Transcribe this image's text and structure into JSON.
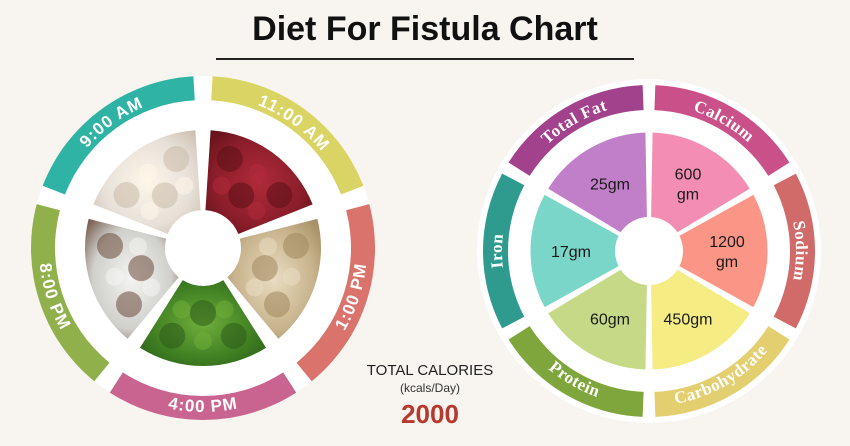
{
  "title": "Diet For Fistula Chart",
  "total_calories": {
    "label": "TOTAL CALORIES",
    "unit": "(kcals/Day)",
    "value": "2000"
  },
  "meal_wheel": {
    "segments": [
      {
        "label": "9:00 AM",
        "color": "#2fb3a5",
        "food": "idli-and-sambar-image"
      },
      {
        "label": "11:00 AM",
        "color": "#d9d463",
        "food": "pomegranate-image"
      },
      {
        "label": "1:00 PM",
        "color": "#d9736b",
        "food": "brown-rice-image"
      },
      {
        "label": "4:00 PM",
        "color": "#c9638f",
        "food": "broccoli-image"
      },
      {
        "label": "8:00 PM",
        "color": "#8fb04a",
        "food": "rice-bowl-image"
      }
    ]
  },
  "chart_data": {
    "type": "pie",
    "title": "",
    "categories": [
      "Total Fat",
      "Calcium",
      "Sodium",
      "Carbohydrate",
      "Protein",
      "Iron"
    ],
    "values": [
      "25gm",
      "600 gm",
      "1200 gm",
      "450gm",
      "60gm",
      "17gm"
    ],
    "colors": {
      "Total Fat": {
        "label_band": "#a2418c",
        "slice": "#c27fc9"
      },
      "Calcium": {
        "label_band": "#c95088",
        "slice": "#f38db4"
      },
      "Sodium": {
        "label_band": "#d06b6a",
        "slice": "#fb9586"
      },
      "Carbohydrate": {
        "label_band": "#e3cf6f",
        "slice": "#f5ec84"
      },
      "Protein": {
        "label_band": "#7fa63c",
        "slice": "#c6d986"
      },
      "Iron": {
        "label_band": "#2f9b8f",
        "slice": "#7ad6c8"
      }
    }
  }
}
